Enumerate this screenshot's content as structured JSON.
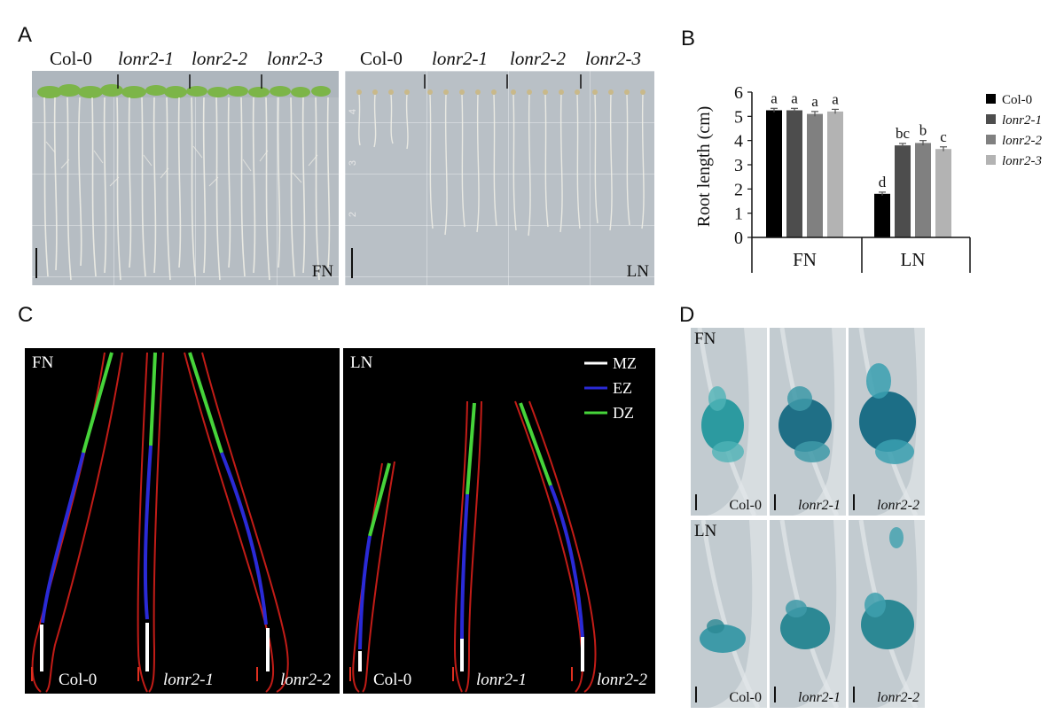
{
  "panel_a": {
    "letter": "A",
    "left_plate": {
      "condition": "FN",
      "genotypes": [
        "Col-0",
        "lonr2-1",
        "lonr2-2",
        "lonr2-3"
      ]
    },
    "right_plate": {
      "condition": "LN",
      "genotypes": [
        "Col-0",
        "lonr2-1",
        "lonr2-2",
        "lonr2-3"
      ]
    },
    "ruler_marks": [
      "4",
      "3",
      "2"
    ]
  },
  "panel_b": {
    "letter": "B"
  },
  "chart_data": {
    "type": "bar",
    "ylabel": "Root length (cm)",
    "ylim": [
      0,
      6
    ],
    "yticks": [
      "0",
      "1",
      "2",
      "3",
      "4",
      "5",
      "6"
    ],
    "categories": [
      "FN",
      "LN"
    ],
    "series": [
      {
        "name": "Col-0",
        "color": "#000000",
        "values": [
          5.25,
          1.8
        ],
        "errors": [
          0.08,
          0.07
        ],
        "letters": [
          "a",
          "d"
        ]
      },
      {
        "name": "lonr2-1",
        "color": "#4d4d4d",
        "values": [
          5.25,
          3.8
        ],
        "errors": [
          0.08,
          0.08
        ],
        "letters": [
          "a",
          "bc"
        ]
      },
      {
        "name": "lonr2-2",
        "color": "#808080",
        "values": [
          5.1,
          3.9
        ],
        "errors": [
          0.1,
          0.1
        ],
        "letters": [
          "a",
          "b"
        ]
      },
      {
        "name": "lonr2-3",
        "color": "#b3b3b3",
        "values": [
          5.2,
          3.65
        ],
        "errors": [
          0.09,
          0.09
        ],
        "letters": [
          "a",
          "c"
        ]
      }
    ],
    "legend_position": "right"
  },
  "panel_c": {
    "letter": "C",
    "left": {
      "condition": "FN",
      "labels": [
        "Col-0",
        "lonr2-1",
        "lonr2-2"
      ]
    },
    "right": {
      "condition": "LN",
      "labels": [
        "Col-0",
        "lonr2-1",
        "lonr2-2"
      ]
    },
    "legend": [
      {
        "name": "MZ",
        "color": "#ffffff"
      },
      {
        "name": "EZ",
        "color": "#2a2ad6"
      },
      {
        "name": "DZ",
        "color": "#46d43a"
      }
    ]
  },
  "panel_d": {
    "letter": "D",
    "rows": [
      {
        "condition": "FN",
        "labels": [
          "Col-0",
          "lonr2-1",
          "lonr2-2"
        ]
      },
      {
        "condition": "LN",
        "labels": [
          "Col-0",
          "lonr2-1",
          "lonr2-2"
        ]
      }
    ]
  }
}
